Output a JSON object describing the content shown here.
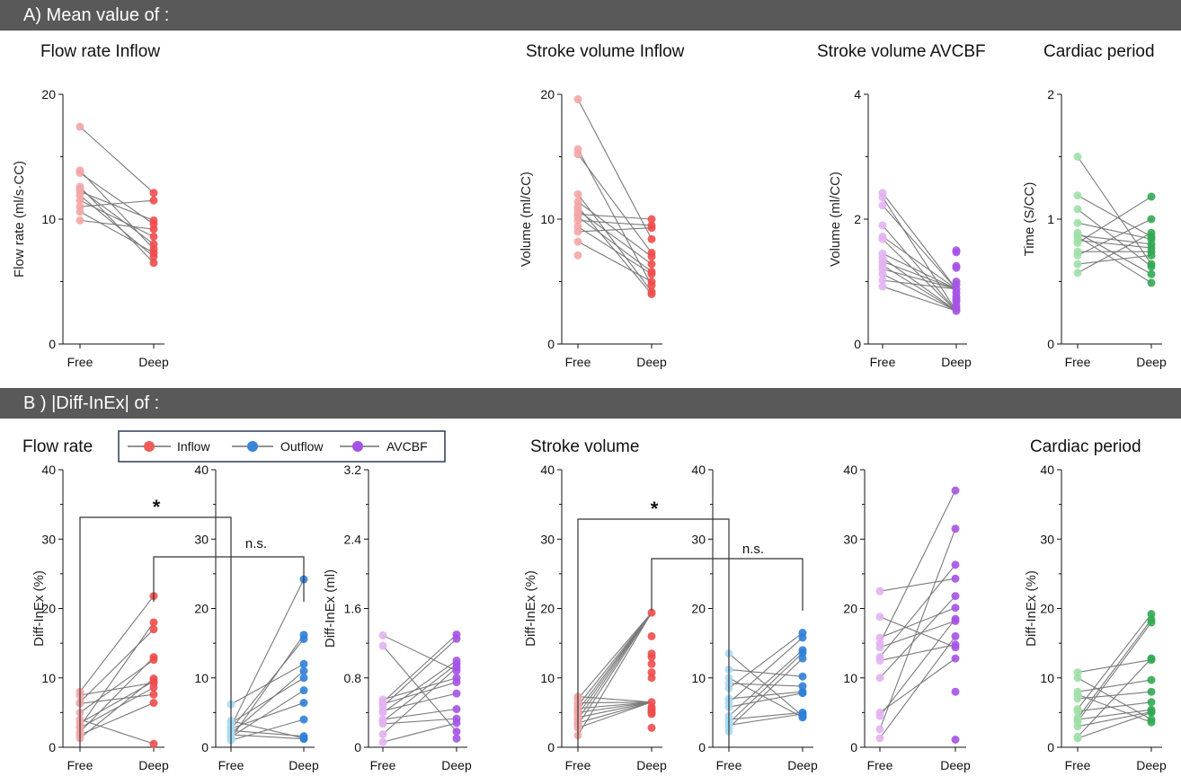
{
  "section_a": {
    "title": "A) Mean value of :"
  },
  "section_b": {
    "title": "B ) |Diff-InEx|  of :"
  },
  "colors": {
    "inflow_free": "#f4a6a6",
    "inflow_deep": "#ee4d4d",
    "outflow_free": "#a9dcf5",
    "outflow_deep": "#2f7fd8",
    "avcbf_free": "#e3b2f2",
    "avcbf_deep": "#a552e6",
    "period_free": "#9ee0a8",
    "period_deep": "#33a853",
    "line": "#7a7a7a",
    "header_bg": "#595959"
  },
  "legend": [
    {
      "label": "Inflow",
      "color": "#ee5c5c"
    },
    {
      "label": "Outflow",
      "color": "#3a84d8"
    },
    {
      "label": "AVCBF",
      "color": "#a552e6"
    }
  ],
  "chart_data": [
    {
      "type": "scatter",
      "id": "a1",
      "title": "Flow rate Inflow",
      "ylabel": "Flow rate (ml/s·CC)",
      "categories": [
        "Free",
        "Deep"
      ],
      "ylim": [
        0,
        20
      ],
      "yticks": [
        "0",
        "10",
        "20"
      ],
      "free": [
        17.4,
        13.9,
        13.7,
        12.6,
        12.4,
        12.2,
        11.9,
        11.5,
        11.0,
        10.6,
        9.9
      ],
      "deep": [
        12.1,
        11.5,
        9.9,
        9.6,
        9.2,
        8.6,
        8.0,
        7.6,
        7.3,
        7.0,
        6.5
      ]
    },
    {
      "type": "scatter",
      "id": "a2",
      "title": "Stroke volume Inflow",
      "ylabel": "Volume (ml/CC)",
      "categories": [
        "Free",
        "Deep"
      ],
      "ylim": [
        0,
        20
      ],
      "yticks": [
        "0",
        "10",
        "20"
      ],
      "free": [
        19.6,
        15.6,
        15.2,
        12.0,
        11.4,
        11.0,
        10.7,
        10.4,
        10.2,
        9.9,
        9.4,
        9.0,
        8.2,
        7.1
      ],
      "deep": [
        10.0,
        9.5,
        9.3,
        8.4,
        7.3,
        7.0,
        6.4,
        5.8,
        5.6,
        5.0,
        4.7,
        4.2,
        4.0
      ]
    },
    {
      "type": "scatter",
      "id": "a3",
      "title": "Stroke volume AVCBF",
      "ylabel": "Volume (ml/CC)",
      "categories": [
        "Free",
        "Deep"
      ],
      "ylim": [
        0,
        4
      ],
      "yticks": [
        "0",
        "2",
        "4"
      ],
      "free": [
        2.42,
        2.35,
        2.22,
        1.9,
        1.72,
        1.68,
        1.45,
        1.38,
        1.32,
        1.26,
        1.2,
        1.12,
        1.02,
        0.92
      ],
      "deep": [
        1.5,
        1.47,
        1.25,
        1.22,
        1.0,
        0.95,
        0.88,
        0.82,
        0.76,
        0.72,
        0.68,
        0.62,
        0.57,
        0.53
      ]
    },
    {
      "type": "scatter",
      "id": "a4",
      "title": "Cardiac period",
      "ylabel": "Time (S/CC)",
      "categories": [
        "Free",
        "Deep"
      ],
      "ylim": [
        0,
        2
      ],
      "yticks": [
        "0",
        "1",
        "2"
      ],
      "free": [
        1.5,
        1.19,
        1.08,
        0.97,
        0.89,
        0.87,
        0.86,
        0.83,
        0.81,
        0.74,
        0.71,
        0.64,
        0.57
      ],
      "deep": [
        1.18,
        1.0,
        0.89,
        0.86,
        0.84,
        0.8,
        0.77,
        0.74,
        0.71,
        0.64,
        0.62,
        0.56,
        0.49
      ]
    },
    {
      "type": "scatter",
      "id": "b1",
      "title": "Flow rate",
      "ylabel": "Diff-InEx (%)",
      "categories": [
        "Free",
        "Deep"
      ],
      "ylim": [
        0,
        40
      ],
      "yticks": [
        "0",
        "10",
        "20",
        "30",
        "40"
      ],
      "free": [
        8.0,
        7.5,
        6.5,
        6.3,
        5.0,
        4.0,
        3.5,
        3.0,
        2.8,
        2.2,
        1.8,
        1.3
      ],
      "deep": [
        21.8,
        18.0,
        17.0,
        13.0,
        12.6,
        9.9,
        9.5,
        9.3,
        8.6,
        7.6,
        6.4,
        0.5
      ]
    },
    {
      "type": "scatter",
      "id": "b2",
      "ylabel": "",
      "categories": [
        "Free",
        "Deep"
      ],
      "ylim": [
        0,
        40
      ],
      "yticks": [
        "0",
        "10",
        "20",
        "30",
        "40"
      ],
      "free": [
        6.2,
        3.8,
        3.5,
        3.0,
        2.7,
        2.6,
        2.4,
        2.0,
        1.8,
        1.5,
        1.3,
        1.0
      ],
      "deep": [
        24.2,
        16.2,
        15.6,
        12.0,
        11.0,
        10.0,
        8.2,
        6.4,
        4.0,
        1.6,
        1.3,
        1.2
      ]
    },
    {
      "type": "scatter",
      "id": "b3",
      "ylabel": "Diff-InEx (ml)",
      "categories": [
        "Free",
        "Deep"
      ],
      "ylim": [
        0,
        3.2
      ],
      "yticks": [
        "0",
        "0.8",
        "1.6",
        "2.4",
        "3.2"
      ],
      "free": [
        1.29,
        1.17,
        0.55,
        0.52,
        0.5,
        0.47,
        0.42,
        0.4,
        0.32,
        0.3,
        0.27,
        0.15,
        0.06
      ],
      "deep": [
        1.3,
        1.25,
        1.0,
        0.96,
        0.92,
        0.88,
        0.8,
        0.75,
        0.62,
        0.44,
        0.33,
        0.28,
        0.18,
        0.1
      ]
    },
    {
      "type": "scatter",
      "id": "b4",
      "title": "Stroke volume",
      "ylabel": "Diff-InEx (%)",
      "categories": [
        "Free",
        "Deep"
      ],
      "ylim": [
        0,
        40
      ],
      "yticks": [
        "0",
        "10",
        "20",
        "30",
        "40"
      ],
      "free": [
        7.3,
        7.0,
        6.4,
        6.0,
        5.6,
        5.3,
        5.0,
        4.7,
        4.3,
        4.0,
        3.5,
        3.2,
        2.8,
        1.7
      ],
      "deep": [
        19.4,
        16.0,
        13.5,
        13.0,
        12.0,
        10.8,
        10.0,
        6.5,
        5.8,
        5.5,
        5.2,
        5.0,
        4.8,
        2.8
      ]
    },
    {
      "type": "scatter",
      "id": "b5",
      "ylabel": "",
      "categories": [
        "Free",
        "Deep"
      ],
      "ylim": [
        0,
        40
      ],
      "yticks": [
        "0",
        "10",
        "20",
        "30",
        "40"
      ],
      "free": [
        13.5,
        11.2,
        10.0,
        9.2,
        8.5,
        7.0,
        6.4,
        5.8,
        4.5,
        4.0,
        3.5,
        3.2,
        2.8,
        2.3
      ],
      "deep": [
        16.5,
        15.8,
        14.0,
        13.6,
        12.8,
        10.2,
        8.8,
        8.0,
        7.8,
        5.0,
        4.8,
        4.5,
        4.3
      ]
    },
    {
      "type": "scatter",
      "id": "b6",
      "ylabel": "",
      "categories": [
        "Free",
        "Deep"
      ],
      "ylim": [
        0,
        40
      ],
      "yticks": [
        "0",
        "10",
        "20",
        "30",
        "40"
      ],
      "free": [
        22.5,
        18.8,
        15.8,
        15.0,
        14.4,
        13.0,
        12.5,
        10.0,
        5.0,
        4.5,
        2.6,
        1.3
      ],
      "deep": [
        37.0,
        31.5,
        26.3,
        24.3,
        21.8,
        20.1,
        18.5,
        18.2,
        16.0,
        14.8,
        14.4,
        12.8,
        8.0,
        1.1
      ]
    },
    {
      "type": "scatter",
      "id": "b7",
      "title": "Cardiac period",
      "ylabel": "Diff-InEx (%)",
      "categories": [
        "Free",
        "Deep"
      ],
      "ylim": [
        0,
        40
      ],
      "yticks": [
        "0",
        "10",
        "20",
        "30",
        "40"
      ],
      "free": [
        10.8,
        10.0,
        8.0,
        7.6,
        7.0,
        5.5,
        5.2,
        4.2,
        4.0,
        3.7,
        3.0,
        1.5,
        1.3
      ],
      "deep": [
        19.2,
        18.4,
        18.0,
        12.8,
        12.6,
        9.7,
        8.0,
        6.5,
        5.4,
        5.1,
        5.0,
        4.0,
        3.6
      ]
    }
  ],
  "annotations": {
    "star": "*",
    "ns": "n.s."
  }
}
